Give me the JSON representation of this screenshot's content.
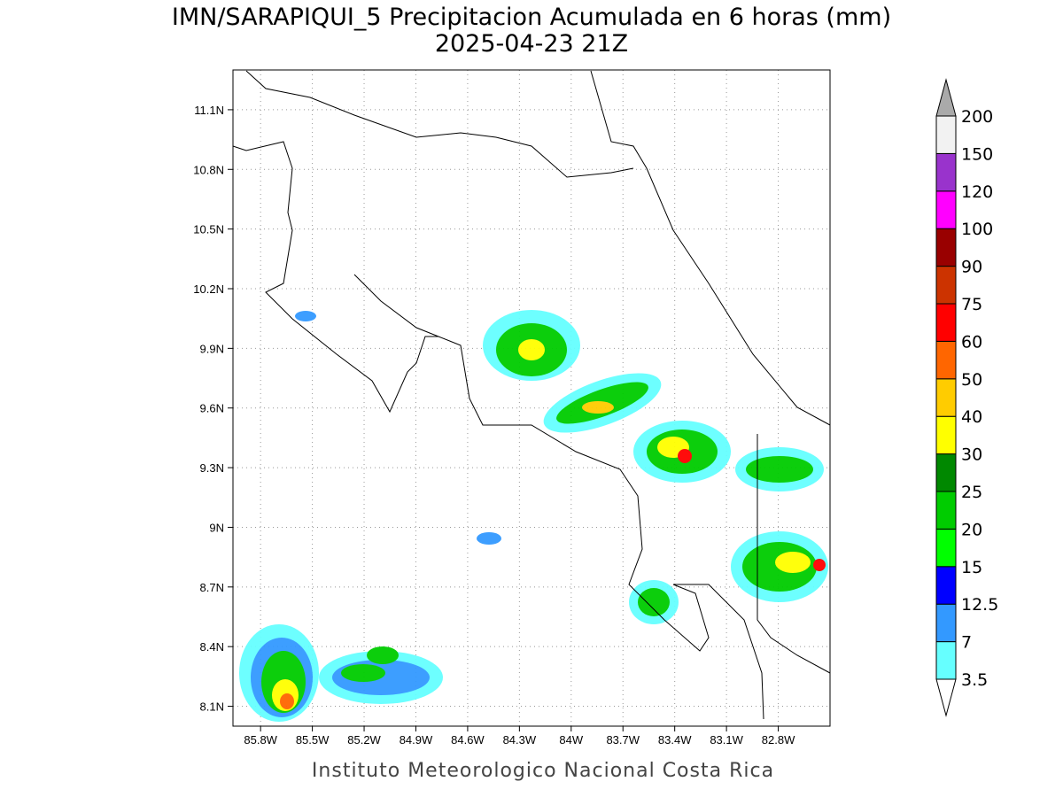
{
  "title": "IMN/SARAPIQUI_5 Precipitacion Acumulada en 6 horas (mm)",
  "subtitle": "2025-04-23 21Z",
  "footer": "Instituto Meteorologico Nacional Costa Rica",
  "map": {
    "xlim": [
      -85.96,
      -82.5
    ],
    "ylim": [
      8.0,
      11.3
    ],
    "grid": true,
    "xticks": [
      {
        "value": -85.8,
        "label": "85.8W"
      },
      {
        "value": -85.5,
        "label": "85.5W"
      },
      {
        "value": -85.2,
        "label": "85.2W"
      },
      {
        "value": -84.9,
        "label": "84.9W"
      },
      {
        "value": -84.6,
        "label": "84.6W"
      },
      {
        "value": -84.3,
        "label": "84.3W"
      },
      {
        "value": -84,
        "label": "84W"
      },
      {
        "value": -83.7,
        "label": "83.7W"
      },
      {
        "value": -83.4,
        "label": "83.4W"
      },
      {
        "value": -83.1,
        "label": "83.1W"
      },
      {
        "value": -82.8,
        "label": "82.8W"
      }
    ],
    "yticks": [
      {
        "value": 8.1,
        "label": "8.1N"
      },
      {
        "value": 8.4,
        "label": "8.4N"
      },
      {
        "value": 8.7,
        "label": "8.7N"
      },
      {
        "value": 9,
        "label": "9N"
      },
      {
        "value": 9.3,
        "label": "9.3N"
      },
      {
        "value": 9.6,
        "label": "9.6N"
      },
      {
        "value": 9.9,
        "label": "9.9N"
      },
      {
        "value": 10.2,
        "label": "10.2N"
      },
      {
        "value": 10.5,
        "label": "10.5N"
      },
      {
        "value": 10.8,
        "label": "10.8N"
      },
      {
        "value": 11.1,
        "label": "11.1N"
      }
    ]
  },
  "colorbar": {
    "levels": [
      3.5,
      7,
      12.5,
      15,
      20,
      25,
      30,
      40,
      50,
      60,
      75,
      90,
      100,
      120,
      150,
      200
    ],
    "colors": [
      "#66ffff",
      "#3399ff",
      "#0000ff",
      "#00ff00",
      "#00cc00",
      "#008800",
      "#ffff00",
      "#ffcc00",
      "#ff6600",
      "#ff0000",
      "#cc3300",
      "#990000",
      "#ff00ff",
      "#9933cc",
      "#f2f2f2"
    ],
    "under_color": "#ffffff",
    "over_color": "#aaaaaa"
  }
}
